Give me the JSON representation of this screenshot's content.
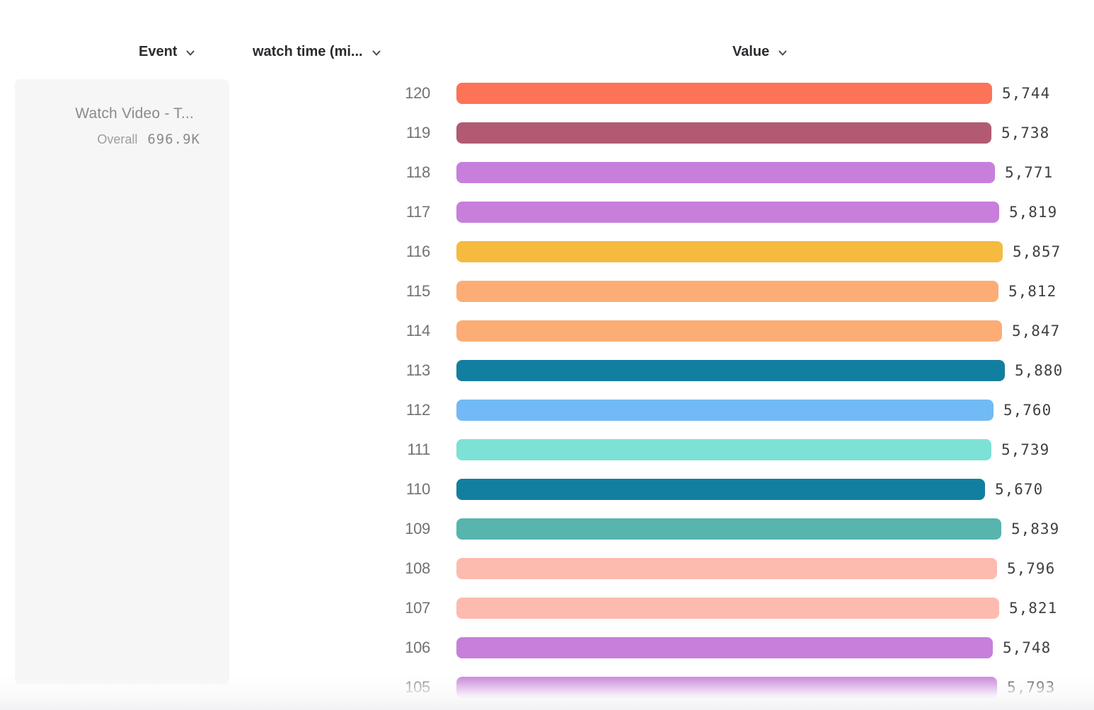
{
  "header": {
    "columns": [
      {
        "label": "Event"
      },
      {
        "label": "watch time (mi..."
      },
      {
        "label": "Value"
      }
    ]
  },
  "event_card": {
    "title": "Watch Video - T...",
    "overall_label": "Overall",
    "overall_value": "696.9K"
  },
  "chart_data": {
    "type": "bar",
    "orientation": "horizontal",
    "series_name": "watch time (mi...)",
    "categories": [
      "120",
      "119",
      "118",
      "117",
      "116",
      "115",
      "114",
      "113",
      "112",
      "111",
      "110",
      "109",
      "108",
      "107",
      "106",
      "105"
    ],
    "values": [
      5744,
      5738,
      5771,
      5819,
      5857,
      5812,
      5847,
      5880,
      5760,
      5739,
      5670,
      5839,
      5796,
      5821,
      5748,
      5793
    ],
    "value_labels": [
      "5,744",
      "5,738",
      "5,771",
      "5,819",
      "5,857",
      "5,812",
      "5,847",
      "5,880",
      "5,760",
      "5,739",
      "5,670",
      "5,839",
      "5,796",
      "5,821",
      "5,748",
      "5,793"
    ],
    "colors": [
      "#FD7357",
      "#B25A71",
      "#C77FDB",
      "#C77FDB",
      "#F6BA3F",
      "#FCAD75",
      "#FCAD75",
      "#137FA0",
      "#72BAF5",
      "#7DE1D6",
      "#137FA0",
      "#57B5AD",
      "#FDBBB0",
      "#FDBBB0",
      "#C77FDB",
      "#C77FDB"
    ],
    "xlim": [
      0,
      5880
    ],
    "grid": false,
    "legend": "none",
    "value_label_position": "end-of-bar"
  }
}
